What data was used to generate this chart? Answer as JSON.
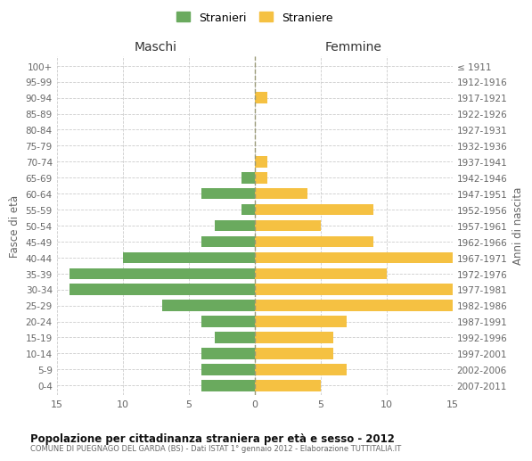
{
  "age_groups": [
    "100+",
    "95-99",
    "90-94",
    "85-89",
    "80-84",
    "75-79",
    "70-74",
    "65-69",
    "60-64",
    "55-59",
    "50-54",
    "45-49",
    "40-44",
    "35-39",
    "30-34",
    "25-29",
    "20-24",
    "15-19",
    "10-14",
    "5-9",
    "0-4"
  ],
  "birth_years": [
    "≤ 1911",
    "1912-1916",
    "1917-1921",
    "1922-1926",
    "1927-1931",
    "1932-1936",
    "1937-1941",
    "1942-1946",
    "1947-1951",
    "1952-1956",
    "1957-1961",
    "1962-1966",
    "1967-1971",
    "1972-1976",
    "1977-1981",
    "1982-1986",
    "1987-1991",
    "1992-1996",
    "1997-2001",
    "2002-2006",
    "2007-2011"
  ],
  "maschi": [
    0,
    0,
    0,
    0,
    0,
    0,
    0,
    1,
    4,
    1,
    3,
    4,
    10,
    14,
    14,
    7,
    4,
    3,
    4,
    4,
    4
  ],
  "femmine": [
    0,
    0,
    1,
    0,
    0,
    0,
    1,
    1,
    4,
    9,
    5,
    9,
    15,
    10,
    15,
    15,
    7,
    6,
    6,
    7,
    5
  ],
  "maschi_color": "#6aaa5e",
  "femmine_color": "#f5c142",
  "title": "Popolazione per cittadinanza straniera per età e sesso - 2012",
  "subtitle": "COMUNE DI PUEGNAGO DEL GARDA (BS) - Dati ISTAT 1° gennaio 2012 - Elaborazione TUTTITALIA.IT",
  "legend_maschi": "Stranieri",
  "legend_femmine": "Straniere",
  "xlabel_left": "Maschi",
  "xlabel_right": "Femmine",
  "ylabel_left": "Fasce di età",
  "ylabel_right": "Anni di nascita",
  "xlim": 15,
  "background_color": "#ffffff",
  "grid_color": "#cccccc"
}
